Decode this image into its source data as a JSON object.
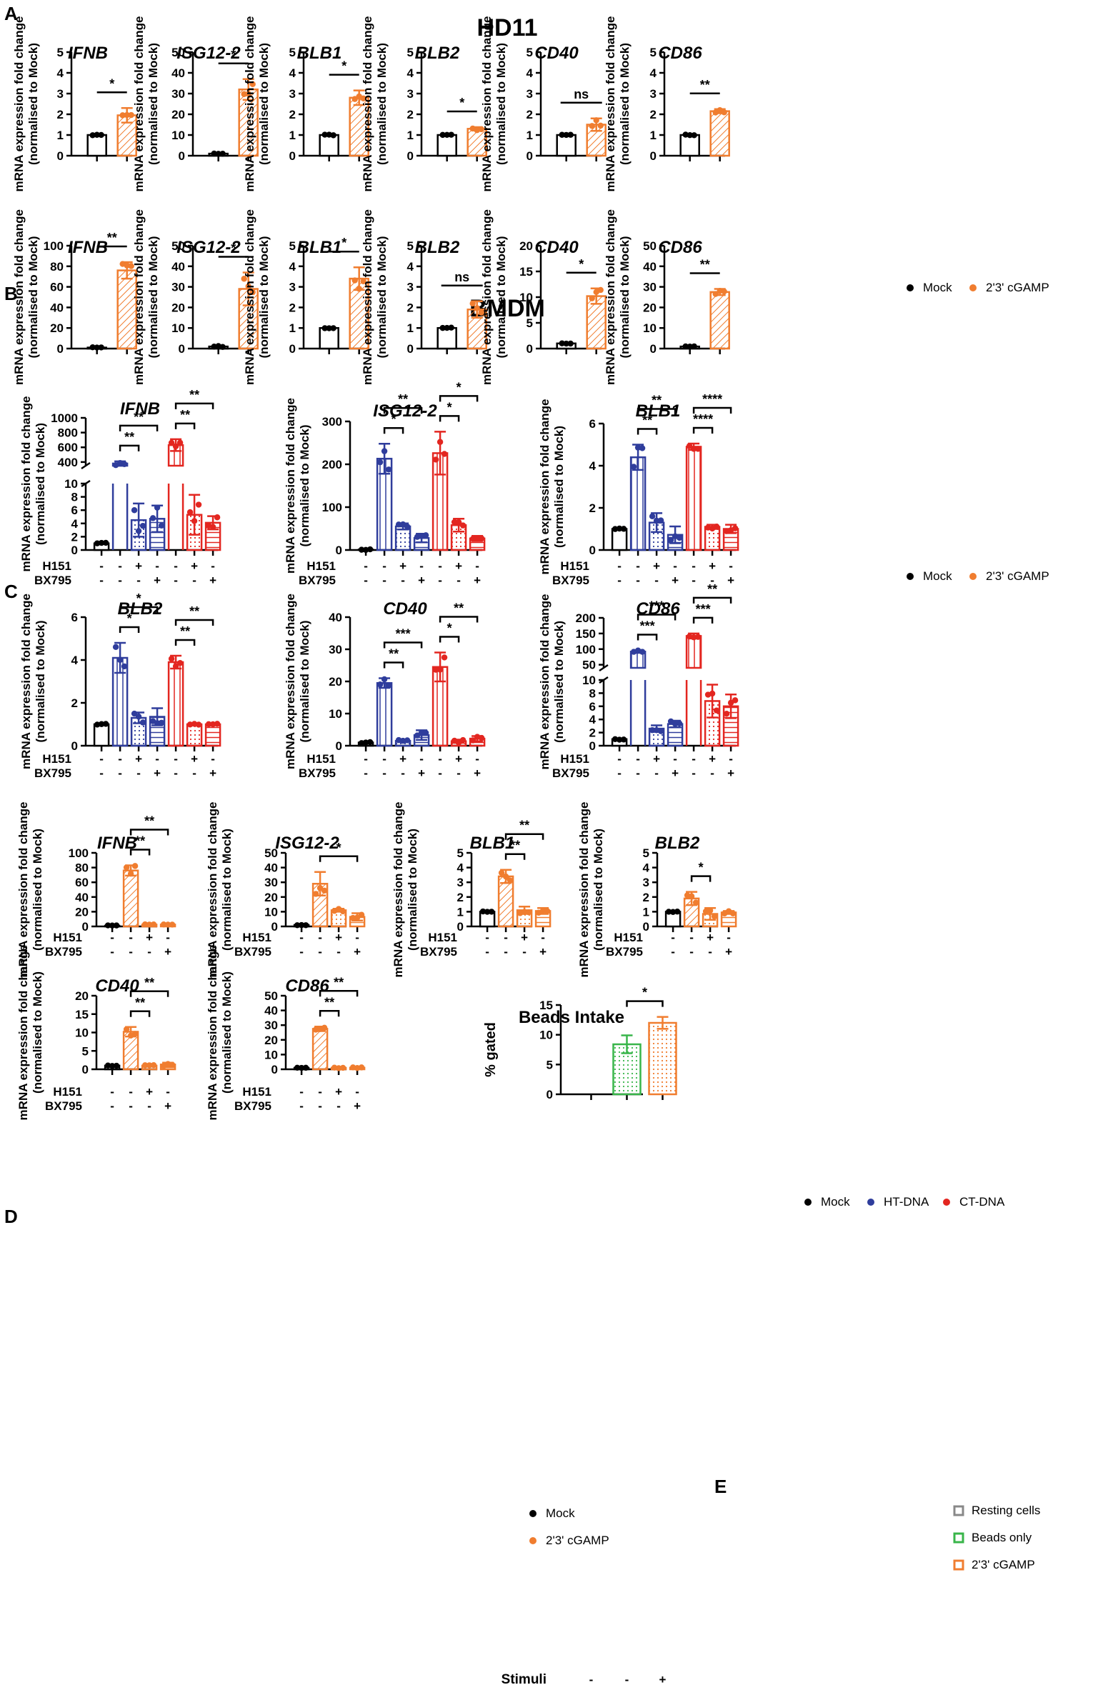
{
  "panel_labels": {
    "a": "A",
    "b": "B",
    "c": "C",
    "d": "D",
    "e": "E"
  },
  "panel_titles": {
    "a": "HD11",
    "b": "BMDM"
  },
  "ylabel_line1": "mRNA expression fold change",
  "ylabel_line2": "(normalised to Mock)",
  "treatment_labels": {
    "h151": "H151",
    "bx795": "BX795",
    "stimuli": "Stimuli"
  },
  "colors": {
    "mock": "#000000",
    "cgamp": "#f07d2f",
    "ht": "#2f3d9c",
    "ct": "#e32620",
    "beads": "#39b54a",
    "resting": "#888888"
  },
  "legends": {
    "a": [
      {
        "label": "Mock",
        "color": "#000000"
      },
      {
        "label": "2'3' cGAMP",
        "color": "#f07d2f"
      }
    ],
    "b": [
      {
        "label": "Mock",
        "color": "#000000"
      },
      {
        "label": "2'3' cGAMP",
        "color": "#f07d2f"
      }
    ],
    "c": [
      {
        "label": "Mock",
        "color": "#000000"
      },
      {
        "label": "HT-DNA",
        "color": "#2f3d9c"
      },
      {
        "label": "CT-DNA",
        "color": "#e32620"
      }
    ],
    "d": [
      {
        "label": "Mock",
        "color": "#000000"
      },
      {
        "label": "2'3' cGAMP",
        "color": "#f07d2f"
      }
    ],
    "e": [
      {
        "label": "Resting cells",
        "color": "#888888"
      },
      {
        "label": "Beads only",
        "color": "#39b54a"
      },
      {
        "label": "2'3' cGAMP",
        "color": "#f07d2f"
      }
    ]
  },
  "chart_data": [
    {
      "panel": "A",
      "type": "bar",
      "title": "IFNB",
      "categories": [
        "Mock",
        "2'3' cGAMP"
      ],
      "values": [
        1.0,
        1.95
      ],
      "errors": [
        0.02,
        0.35
      ],
      "yticks": [
        0,
        1,
        2,
        3,
        4,
        5
      ],
      "ylim": [
        0,
        5
      ],
      "sig": [
        {
          "a": 0,
          "b": 1,
          "label": "*"
        }
      ]
    },
    {
      "panel": "A",
      "type": "bar",
      "title": "ISG12-2",
      "categories": [
        "Mock",
        "2'3' cGAMP"
      ],
      "values": [
        1,
        32
      ],
      "errors": [
        0.3,
        5
      ],
      "yticks": [
        0,
        10,
        20,
        30,
        40,
        50
      ],
      "ylim": [
        0,
        50
      ],
      "sig": [
        {
          "a": 0,
          "b": 1,
          "label": "*"
        }
      ]
    },
    {
      "panel": "A",
      "type": "bar",
      "title": "BLB1",
      "categories": [
        "Mock",
        "2'3' cGAMP"
      ],
      "values": [
        1.0,
        2.8
      ],
      "errors": [
        0.02,
        0.35
      ],
      "yticks": [
        0,
        1,
        2,
        3,
        4,
        5
      ],
      "ylim": [
        0,
        5
      ],
      "sig": [
        {
          "a": 0,
          "b": 1,
          "label": "*"
        }
      ]
    },
    {
      "panel": "A",
      "type": "bar",
      "title": "BLB2",
      "categories": [
        "Mock",
        "2'3' cGAMP"
      ],
      "values": [
        1.0,
        1.3
      ],
      "errors": [
        0.02,
        0.08
      ],
      "yticks": [
        0,
        1,
        2,
        3,
        4,
        5
      ],
      "ylim": [
        0,
        5
      ],
      "sig": [
        {
          "a": 0,
          "b": 1,
          "label": "*"
        }
      ]
    },
    {
      "panel": "A",
      "type": "bar",
      "title": "CD40",
      "categories": [
        "Mock",
        "2'3' cGAMP"
      ],
      "values": [
        1.0,
        1.5
      ],
      "errors": [
        0.02,
        0.3
      ],
      "yticks": [
        0,
        1,
        2,
        3,
        4,
        5
      ],
      "ylim": [
        0,
        5
      ],
      "sig": [
        {
          "a": 0,
          "b": 1,
          "label": "ns"
        }
      ]
    },
    {
      "panel": "A",
      "type": "bar",
      "title": "CD86",
      "categories": [
        "Mock",
        "2'3' cGAMP"
      ],
      "values": [
        1.0,
        2.15
      ],
      "errors": [
        0.02,
        0.1
      ],
      "yticks": [
        0,
        1,
        2,
        3,
        4,
        5
      ],
      "ylim": [
        0,
        5
      ],
      "sig": [
        {
          "a": 0,
          "b": 1,
          "label": "**"
        }
      ]
    },
    {
      "panel": "B",
      "type": "bar",
      "title": "IFNB",
      "categories": [
        "Mock",
        "2'3' cGAMP"
      ],
      "values": [
        1,
        76
      ],
      "errors": [
        0.5,
        8
      ],
      "yticks": [
        0,
        20,
        40,
        60,
        80,
        100
      ],
      "ylim": [
        0,
        100
      ],
      "sig": [
        {
          "a": 0,
          "b": 1,
          "label": "**"
        }
      ]
    },
    {
      "panel": "B",
      "type": "bar",
      "title": "ISG12-2",
      "categories": [
        "Mock",
        "2'3' cGAMP"
      ],
      "values": [
        1,
        29
      ],
      "errors": [
        0.3,
        8
      ],
      "yticks": [
        0,
        10,
        20,
        30,
        40,
        50
      ],
      "ylim": [
        0,
        50
      ],
      "sig": [
        {
          "a": 0,
          "b": 1,
          "label": "*"
        }
      ]
    },
    {
      "panel": "B",
      "type": "bar",
      "title": "BLB1",
      "categories": [
        "Mock",
        "2'3' cGAMP"
      ],
      "values": [
        1.0,
        3.4
      ],
      "errors": [
        0.02,
        0.55
      ],
      "yticks": [
        0,
        1,
        2,
        3,
        4,
        5
      ],
      "ylim": [
        0,
        5
      ],
      "sig": [
        {
          "a": 0,
          "b": 1,
          "label": "*"
        }
      ]
    },
    {
      "panel": "B",
      "type": "bar",
      "title": "BLB2",
      "categories": [
        "Mock",
        "2'3' cGAMP"
      ],
      "values": [
        1.0,
        1.9
      ],
      "errors": [
        0.02,
        0.4
      ],
      "yticks": [
        0,
        1,
        2,
        3,
        4,
        5
      ],
      "ylim": [
        0,
        5
      ],
      "sig": [
        {
          "a": 0,
          "b": 1,
          "label": "ns"
        }
      ]
    },
    {
      "panel": "B",
      "type": "bar",
      "title": "CD40",
      "categories": [
        "Mock",
        "2'3' cGAMP"
      ],
      "values": [
        1.0,
        10.2
      ],
      "errors": [
        0.05,
        1.5
      ],
      "yticks": [
        0,
        5,
        10,
        15,
        20
      ],
      "ylim": [
        0,
        20
      ],
      "sig": [
        {
          "a": 0,
          "b": 1,
          "label": "*"
        }
      ]
    },
    {
      "panel": "B",
      "type": "bar",
      "title": "CD86",
      "categories": [
        "Mock",
        "2'3' cGAMP"
      ],
      "values": [
        1,
        27.5
      ],
      "errors": [
        0.1,
        1.5
      ],
      "yticks": [
        0,
        10,
        20,
        30,
        40,
        50
      ],
      "ylim": [
        0,
        50
      ],
      "sig": [
        {
          "a": 0,
          "b": 1,
          "label": "**"
        }
      ]
    },
    {
      "panel": "C",
      "type": "bar",
      "title": "IFNB",
      "categories": [
        "Mock",
        "HT-DNA",
        "HT-DNA+H151",
        "HT-DNA+BX795",
        "CT-DNA",
        "CT-DNA+H151",
        "CT-DNA+BX795"
      ],
      "values": [
        1,
        380,
        4.5,
        4.7,
        630,
        5.3,
        4.1
      ],
      "errors": [
        0.1,
        30,
        2.5,
        2.0,
        80,
        3.0,
        1.0
      ],
      "yticks": [
        0,
        2,
        4,
        6,
        8,
        10,
        400,
        600,
        800,
        1000
      ],
      "broken_axis": {
        "lower": [
          0,
          10
        ],
        "upper": [
          350,
          1000
        ]
      },
      "sig": [
        {
          "a": 1,
          "b": 2,
          "label": "**"
        },
        {
          "a": 1,
          "b": 3,
          "label": "**"
        },
        {
          "a": 4,
          "b": 5,
          "label": "**"
        },
        {
          "a": 4,
          "b": 6,
          "label": "**"
        }
      ]
    },
    {
      "panel": "C",
      "type": "bar",
      "title": "ISG12-2",
      "categories": [
        "Mock",
        "HT-DNA",
        "HT-DNA+H151",
        "HT-DNA+BX795",
        "CT-DNA",
        "CT-DNA+H151",
        "CT-DNA+BX795"
      ],
      "values": [
        1,
        213,
        55,
        28,
        226,
        58,
        27
      ],
      "errors": [
        1,
        35,
        7,
        10,
        50,
        15,
        6
      ],
      "yticks": [
        0,
        100,
        200,
        300
      ],
      "ylim": [
        0,
        300
      ],
      "sig": [
        {
          "a": 1,
          "b": 2,
          "label": "*"
        },
        {
          "a": 1,
          "b": 3,
          "label": "**"
        },
        {
          "a": 4,
          "b": 5,
          "label": "*"
        },
        {
          "a": 4,
          "b": 6,
          "label": "*"
        }
      ]
    },
    {
      "panel": "C",
      "type": "bar",
      "title": "BLB1",
      "categories": [
        "Mock",
        "HT-DNA",
        "HT-DNA+H151",
        "HT-DNA+BX795",
        "CT-DNA",
        "CT-DNA+H151",
        "CT-DNA+BX795"
      ],
      "values": [
        1.0,
        4.4,
        1.3,
        0.72,
        4.9,
        1.1,
        1.0
      ],
      "errors": [
        0.02,
        0.6,
        0.45,
        0.4,
        0.15,
        0.1,
        0.2
      ],
      "yticks": [
        0,
        2,
        4,
        6
      ],
      "ylim": [
        0,
        6
      ],
      "sig": [
        {
          "a": 1,
          "b": 2,
          "label": "**"
        },
        {
          "a": 1,
          "b": 3,
          "label": "**"
        },
        {
          "a": 4,
          "b": 5,
          "label": "****"
        },
        {
          "a": 4,
          "b": 6,
          "label": "****"
        }
      ]
    },
    {
      "panel": "C",
      "type": "bar",
      "title": "BLB2",
      "categories": [
        "Mock",
        "HT-DNA",
        "HT-DNA+H151",
        "HT-DNA+BX795",
        "CT-DNA",
        "CT-DNA+H151",
        "CT-DNA+BX795"
      ],
      "values": [
        1.0,
        4.1,
        1.3,
        1.35,
        3.9,
        1.0,
        1.0
      ],
      "errors": [
        0.02,
        0.7,
        0.25,
        0.4,
        0.3,
        0.03,
        0.03
      ],
      "yticks": [
        0,
        2,
        4,
        6
      ],
      "ylim": [
        0,
        6
      ],
      "sig": [
        {
          "a": 1,
          "b": 2,
          "label": "*"
        },
        {
          "a": 1,
          "b": 3,
          "label": "*"
        },
        {
          "a": 4,
          "b": 5,
          "label": "**"
        },
        {
          "a": 4,
          "b": 6,
          "label": "**"
        }
      ]
    },
    {
      "panel": "C",
      "type": "bar",
      "title": "CD40",
      "categories": [
        "Mock",
        "HT-DNA",
        "HT-DNA+H151",
        "HT-DNA+BX795",
        "CT-DNA",
        "CT-DNA+H151",
        "CT-DNA+BX795"
      ],
      "values": [
        1,
        19.5,
        1.5,
        3.3,
        24.5,
        1.4,
        2.2
      ],
      "errors": [
        0.3,
        1.5,
        0.4,
        1.5,
        4.5,
        0.5,
        0.8
      ],
      "yticks": [
        0,
        10,
        20,
        30,
        40
      ],
      "ylim": [
        0,
        40
      ],
      "sig": [
        {
          "a": 1,
          "b": 2,
          "label": "**"
        },
        {
          "a": 1,
          "b": 3,
          "label": "***"
        },
        {
          "a": 4,
          "b": 5,
          "label": "*"
        },
        {
          "a": 4,
          "b": 6,
          "label": "**"
        }
      ]
    },
    {
      "panel": "C",
      "type": "bar",
      "title": "CD86",
      "categories": [
        "Mock",
        "HT-DNA",
        "HT-DNA+H151",
        "HT-DNA+BX795",
        "CT-DNA",
        "CT-DNA+H151",
        "CT-DNA+BX795"
      ],
      "values": [
        1,
        92,
        2.6,
        3.3,
        142,
        6.8,
        6.0
      ],
      "errors": [
        0.1,
        4,
        0.5,
        0.5,
        8,
        2.5,
        1.8
      ],
      "yticks": [
        0,
        2,
        4,
        6,
        8,
        10,
        50,
        100,
        150,
        200
      ],
      "broken_axis": {
        "lower": [
          0,
          10
        ],
        "upper": [
          40,
          200
        ]
      },
      "sig": [
        {
          "a": 1,
          "b": 2,
          "label": "***"
        },
        {
          "a": 1,
          "b": 3,
          "label": "***"
        },
        {
          "a": 4,
          "b": 5,
          "label": "***"
        },
        {
          "a": 4,
          "b": 6,
          "label": "**"
        }
      ]
    },
    {
      "panel": "D",
      "type": "bar",
      "title": "IFNB",
      "categories": [
        "Mock",
        "2'3' cGAMP",
        "cGAMP+H151",
        "cGAMP+BX795"
      ],
      "values": [
        1,
        76,
        2.5,
        2.5
      ],
      "errors": [
        0.5,
        7,
        0.5,
        0.5
      ],
      "yticks": [
        0,
        20,
        40,
        60,
        80,
        100
      ],
      "ylim": [
        0,
        100
      ],
      "sig": [
        {
          "a": 1,
          "b": 2,
          "label": "**"
        },
        {
          "a": 1,
          "b": 3,
          "label": "**"
        }
      ]
    },
    {
      "panel": "D",
      "type": "bar",
      "title": "ISG12-2",
      "categories": [
        "Mock",
        "2'3' cGAMP",
        "cGAMP+H151",
        "cGAMP+BX795"
      ],
      "values": [
        1,
        29,
        11,
        6.5
      ],
      "errors": [
        0.3,
        8,
        1,
        2.5
      ],
      "yticks": [
        0,
        10,
        20,
        30,
        40,
        50
      ],
      "ylim": [
        0,
        50
      ],
      "sig": [
        {
          "a": 1,
          "b": 3,
          "label": "*"
        }
      ]
    },
    {
      "panel": "D",
      "type": "bar",
      "title": "BLB1",
      "categories": [
        "Mock",
        "2'3' cGAMP",
        "cGAMP+H151",
        "cGAMP+BX795"
      ],
      "values": [
        1.0,
        3.4,
        1.1,
        1.05
      ],
      "errors": [
        0.02,
        0.45,
        0.25,
        0.2
      ],
      "yticks": [
        0,
        1,
        2,
        3,
        4,
        5
      ],
      "ylim": [
        0,
        5
      ],
      "sig": [
        {
          "a": 1,
          "b": 2,
          "label": "**"
        },
        {
          "a": 1,
          "b": 3,
          "label": "**"
        }
      ]
    },
    {
      "panel": "D",
      "type": "bar",
      "title": "BLB2",
      "categories": [
        "Mock",
        "2'3' cGAMP",
        "cGAMP+H151",
        "cGAMP+BX795"
      ],
      "values": [
        1.0,
        1.9,
        0.85,
        0.95
      ],
      "errors": [
        0.02,
        0.45,
        0.4,
        0.1
      ],
      "yticks": [
        0,
        1,
        2,
        3,
        4,
        5
      ],
      "ylim": [
        0,
        5
      ],
      "sig": [
        {
          "a": 1,
          "b": 2,
          "label": "*"
        }
      ]
    },
    {
      "panel": "D",
      "type": "bar",
      "title": "CD40",
      "categories": [
        "Mock",
        "2'3' cGAMP",
        "cGAMP+H151",
        "cGAMP+BX795"
      ],
      "values": [
        1,
        10.2,
        1.0,
        1.3
      ],
      "errors": [
        0.1,
        1.3,
        0.2,
        0.5
      ],
      "yticks": [
        0,
        5,
        10,
        15,
        20
      ],
      "ylim": [
        0,
        20
      ],
      "sig": [
        {
          "a": 1,
          "b": 2,
          "label": "**"
        },
        {
          "a": 1,
          "b": 3,
          "label": "**"
        }
      ]
    },
    {
      "panel": "D",
      "type": "bar",
      "title": "CD86",
      "categories": [
        "Mock",
        "2'3' cGAMP",
        "cGAMP+H151",
        "cGAMP+BX795"
      ],
      "values": [
        1,
        27.5,
        1.0,
        1.1
      ],
      "errors": [
        0.1,
        1.5,
        0.3,
        0.3
      ],
      "yticks": [
        0,
        10,
        20,
        30,
        40,
        50
      ],
      "ylim": [
        0,
        50
      ],
      "sig": [
        {
          "a": 1,
          "b": 2,
          "label": "**"
        },
        {
          "a": 1,
          "b": 3,
          "label": "**"
        }
      ]
    },
    {
      "panel": "E",
      "type": "bar",
      "title": "Beads Intake",
      "ylabel": "% gated",
      "categories": [
        "Resting cells",
        "Beads only",
        "2'3' cGAMP"
      ],
      "values": [
        0,
        8.4,
        12.0
      ],
      "errors": [
        0,
        1.5,
        1.0
      ],
      "yticks": [
        0,
        5,
        10,
        15
      ],
      "ylim": [
        0,
        15
      ],
      "sig": [
        {
          "a": 1,
          "b": 2,
          "label": "*"
        }
      ]
    }
  ]
}
